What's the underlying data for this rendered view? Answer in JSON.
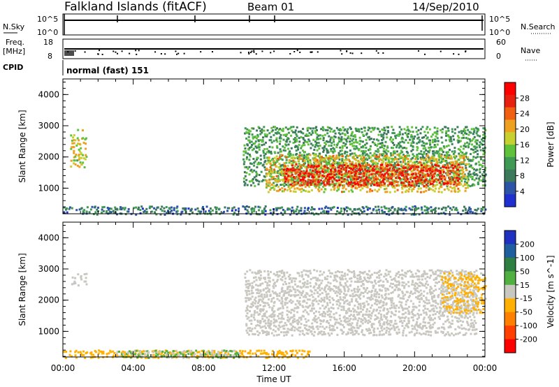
{
  "header": {
    "station": "Falkland Islands (fitACF)",
    "beam": "Beam 01",
    "date": "14/Sep/2010"
  },
  "strip_panels": {
    "nsky": {
      "label": "N.Sky",
      "ticks": [
        "10^5",
        "10^0"
      ]
    },
    "nsearch": {
      "label": "N.Search",
      "ticks": [
        "10^5",
        "10^0"
      ]
    },
    "freq": {
      "label": "Freq.",
      "unit": "[MHz]",
      "ticks": [
        "18",
        "8"
      ]
    },
    "nave": {
      "label": "Nave",
      "ticks": [
        "60",
        "0"
      ]
    },
    "cpid": {
      "label": "CPID",
      "value": "normal (fast) 151"
    }
  },
  "colors": {
    "power": [
      "#1f2fd0",
      "#2c55a8",
      "#3d7a5c",
      "#3e9a55",
      "#60c23a",
      "#c8d030",
      "#f0a020",
      "#f06010",
      "#e82010",
      "#ff0000"
    ],
    "velocity": [
      "#2030c0",
      "#1f5fa0",
      "#2f8040",
      "#50b040",
      "#c8c8c0",
      "#ffb000",
      "#ff8000",
      "#ff4000",
      "#ff0000"
    ]
  },
  "chart_data": [
    {
      "type": "heatmap",
      "title": "",
      "xlabel": "",
      "ylabel": "Slant Range [km]",
      "x_range_hours": [
        0,
        24
      ],
      "ylim": [
        180,
        4500
      ],
      "yticks": [
        "1000",
        "2000",
        "3000",
        "4000"
      ],
      "colorbar": {
        "label": "Power [dB]",
        "ticks": [
          "28",
          "24",
          "20",
          "16",
          "12",
          "8",
          "4"
        ],
        "range": [
          0,
          30
        ]
      },
      "regions": [
        {
          "t": [
            0.4,
            1.3
          ],
          "r": [
            1700,
            2900
          ],
          "level": 16
        },
        {
          "t": [
            10.2,
            24
          ],
          "r": [
            1100,
            3000
          ],
          "level": 10
        },
        {
          "t": [
            11.5,
            23
          ],
          "r": [
            900,
            2100
          ],
          "level": 18
        },
        {
          "t": [
            12.5,
            22.5
          ],
          "r": [
            1100,
            1800
          ],
          "level": 27
        },
        {
          "t": [
            0,
            24
          ],
          "r": [
            180,
            450
          ],
          "level": 6
        }
      ]
    },
    {
      "type": "heatmap",
      "title": "",
      "xlabel": "Time UT",
      "ylabel": "Slant Range [km]",
      "x_range_hours": [
        0,
        24
      ],
      "ylim": [
        180,
        4500
      ],
      "yticks": [
        "1000",
        "2000",
        "3000",
        "4000"
      ],
      "xticks": [
        "00:00",
        "04:00",
        "08:00",
        "12:00",
        "16:00",
        "20:00",
        "00:00"
      ],
      "colorbar": {
        "label": "Velocity [m s^-1]",
        "ticks": [
          "200",
          "100",
          "50",
          "15",
          "-15",
          "-50",
          "-100",
          "-200"
        ],
        "range": [
          -250,
          250
        ]
      },
      "regions": [
        {
          "t": [
            0.4,
            1.3
          ],
          "r": [
            2500,
            2900
          ],
          "level": 0
        },
        {
          "t": [
            10.3,
            23.5
          ],
          "r": [
            900,
            3000
          ],
          "level": 0
        },
        {
          "t": [
            21.5,
            24
          ],
          "r": [
            1600,
            2900
          ],
          "level": -40
        },
        {
          "t": [
            0,
            14
          ],
          "r": [
            180,
            420
          ],
          "level": -60
        },
        {
          "t": [
            3,
            10
          ],
          "r": [
            180,
            420
          ],
          "level": 30
        }
      ]
    }
  ]
}
